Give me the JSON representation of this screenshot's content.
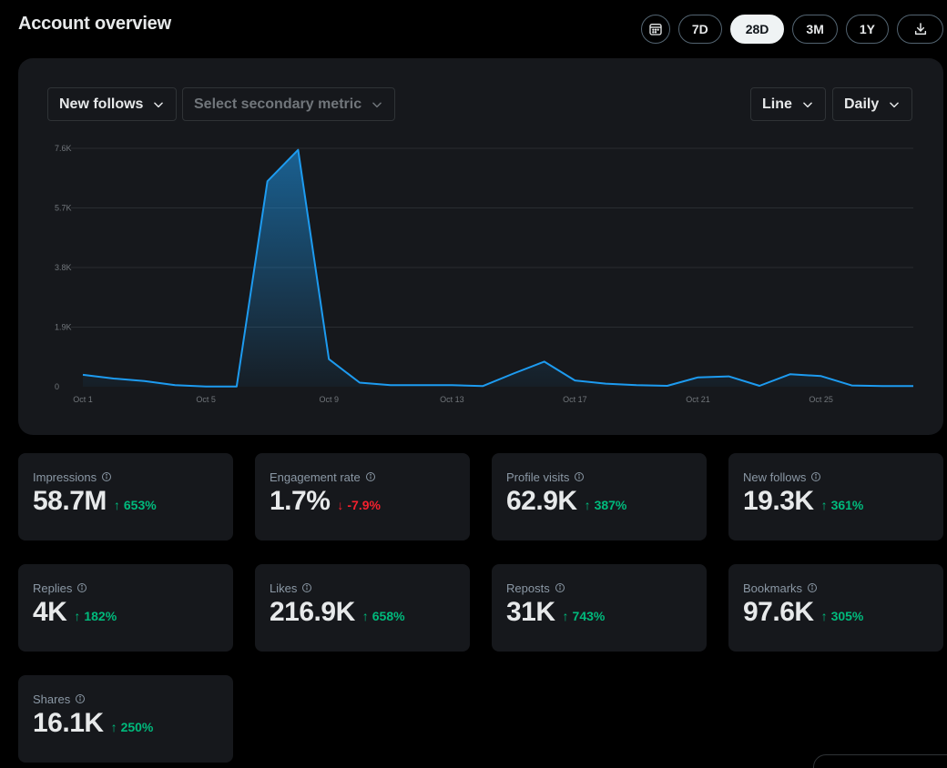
{
  "page": {
    "title": "Account overview"
  },
  "range": {
    "buttons": [
      {
        "label": "7D",
        "active": false
      },
      {
        "label": "28D",
        "active": true
      },
      {
        "label": "3M",
        "active": false
      },
      {
        "label": "1Y",
        "active": false
      }
    ],
    "calendar_icon": "calendar-icon",
    "download_icon": "download-icon"
  },
  "chart_controls": {
    "primary_metric": "New follows",
    "secondary_metric_placeholder": "Select secondary metric",
    "chart_type": "Line",
    "interval": "Daily"
  },
  "chart_data": {
    "type": "area",
    "x": [
      "Oct 1",
      "Oct 2",
      "Oct 3",
      "Oct 4",
      "Oct 5",
      "Oct 6",
      "Oct 7",
      "Oct 8",
      "Oct 9",
      "Oct 10",
      "Oct 11",
      "Oct 12",
      "Oct 13",
      "Oct 14",
      "Oct 15",
      "Oct 16",
      "Oct 17",
      "Oct 18",
      "Oct 19",
      "Oct 20",
      "Oct 21",
      "Oct 22",
      "Oct 23",
      "Oct 24",
      "Oct 25",
      "Oct 26",
      "Oct 27",
      "Oct 28"
    ],
    "series": [
      {
        "values": [
          380,
          260,
          180,
          50,
          10,
          10,
          6550,
          7550,
          880,
          130,
          50,
          50,
          50,
          20,
          420,
          800,
          200,
          100,
          50,
          30,
          300,
          330,
          30,
          400,
          340,
          40,
          20,
          20
        ],
        "color": "#1d9bf0"
      }
    ],
    "x_tick_labels": [
      "Oct 1",
      "Oct 5",
      "Oct 9",
      "Oct 13",
      "Oct 17",
      "Oct 21",
      "Oct 25"
    ],
    "y_tick_labels": [
      "0",
      "1.9K",
      "3.8K",
      "5.7K",
      "7.6K"
    ],
    "y_tick_values": [
      0,
      1900,
      3800,
      5700,
      7600
    ],
    "ylim": [
      0,
      7600
    ],
    "grid": true
  },
  "metrics": [
    {
      "label": "Impressions",
      "value": "58.7M",
      "change": "653%",
      "direction": "up"
    },
    {
      "label": "Engagement rate",
      "value": "1.7%",
      "change": "-7.9%",
      "direction": "down"
    },
    {
      "label": "Profile visits",
      "value": "62.9K",
      "change": "387%",
      "direction": "up"
    },
    {
      "label": "New follows",
      "value": "19.3K",
      "change": "361%",
      "direction": "up"
    },
    {
      "label": "Replies",
      "value": "4K",
      "change": "182%",
      "direction": "up"
    },
    {
      "label": "Likes",
      "value": "216.9K",
      "change": "658%",
      "direction": "up"
    },
    {
      "label": "Reposts",
      "value": "31K",
      "change": "743%",
      "direction": "up"
    },
    {
      "label": "Bookmarks",
      "value": "97.6K",
      "change": "305%",
      "direction": "up"
    },
    {
      "label": "Shares",
      "value": "16.1K",
      "change": "250%",
      "direction": "up"
    }
  ],
  "symbols": {
    "up_arrow": "↑",
    "down_arrow": "↓"
  },
  "colors": {
    "up": "#00ba7c",
    "down": "#f4212e",
    "accent": "#1d9bf0",
    "card": "#16181c"
  }
}
